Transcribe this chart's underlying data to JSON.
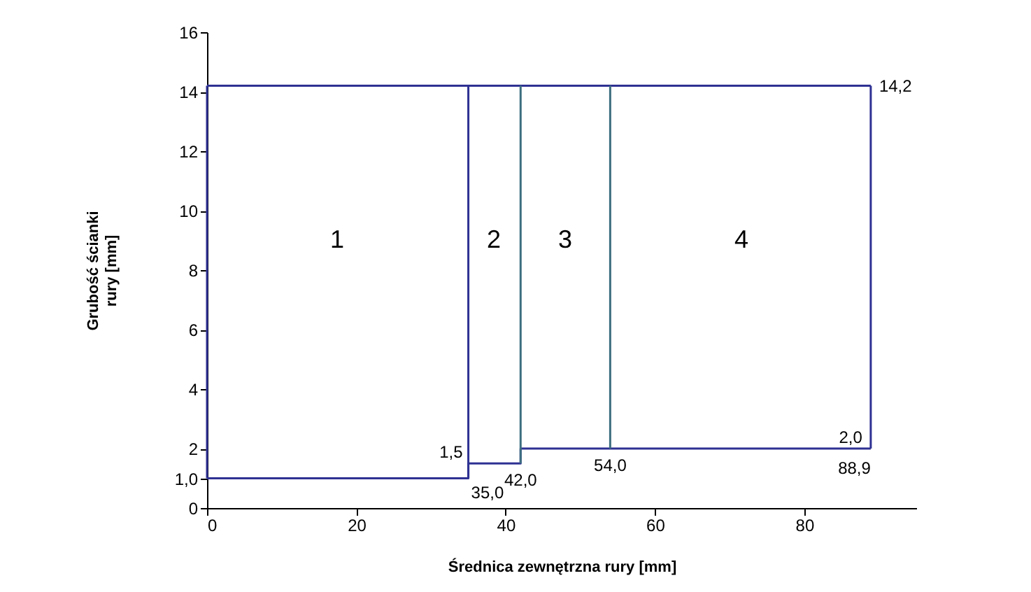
{
  "chart_data": {
    "type": "line",
    "xlabel": "Średnica zewnętrzna rury [mm]",
    "ylabel": "Grubość ścianki\nrury [mm]",
    "series": [
      {
        "color": "#2e3192",
        "x": [
          0,
          35,
          35,
          42,
          42,
          88.9
        ],
        "values": [
          1,
          1,
          1.5,
          1.5,
          2,
          2
        ]
      },
      {
        "color": "#2e3192",
        "x": [
          0,
          88.9
        ],
        "values": [
          14.2,
          14.2
        ]
      },
      {
        "color": "#2e3192",
        "x": [
          0,
          0
        ],
        "values": [
          1,
          14.2
        ]
      },
      {
        "color": "#2e3192",
        "x": [
          35,
          35
        ],
        "values": [
          1,
          14.2
        ]
      },
      {
        "color": "#3d6e80",
        "x": [
          42,
          42
        ],
        "values": [
          1.5,
          14.2
        ]
      },
      {
        "color": "#3d6e80",
        "x": [
          54,
          54
        ],
        "values": [
          2,
          14.2
        ]
      },
      {
        "color": "#2e3192",
        "x": [
          88.9,
          88.9
        ],
        "values": [
          2,
          14.2
        ]
      }
    ],
    "xlim": [
      0,
      95
    ],
    "xticks": [
      0,
      20,
      40,
      60,
      80
    ],
    "ylim": [
      0,
      16
    ],
    "yticks": [
      0,
      {
        "value": 1,
        "label": "1,0"
      },
      2,
      4,
      6,
      8,
      10,
      12,
      14,
      16
    ],
    "grid": false,
    "marker": "none",
    "line_style": "solid",
    "annotations": [
      {
        "text": "1,5",
        "x": 35,
        "y": 1.5
      },
      {
        "text": "35,0",
        "x": 35,
        "y": 1
      },
      {
        "text": "42,0",
        "x": 42,
        "y": 1.5
      },
      {
        "text": "54,0",
        "x": 54,
        "y": 2
      },
      {
        "text": "88,9",
        "x": 88.9,
        "y": 2
      },
      {
        "text": "2,0",
        "x": 88.9,
        "y": 2
      },
      {
        "text": "14,2",
        "x": 88.9,
        "y": 14.2
      },
      "1",
      "2",
      "3",
      "4"
    ]
  }
}
